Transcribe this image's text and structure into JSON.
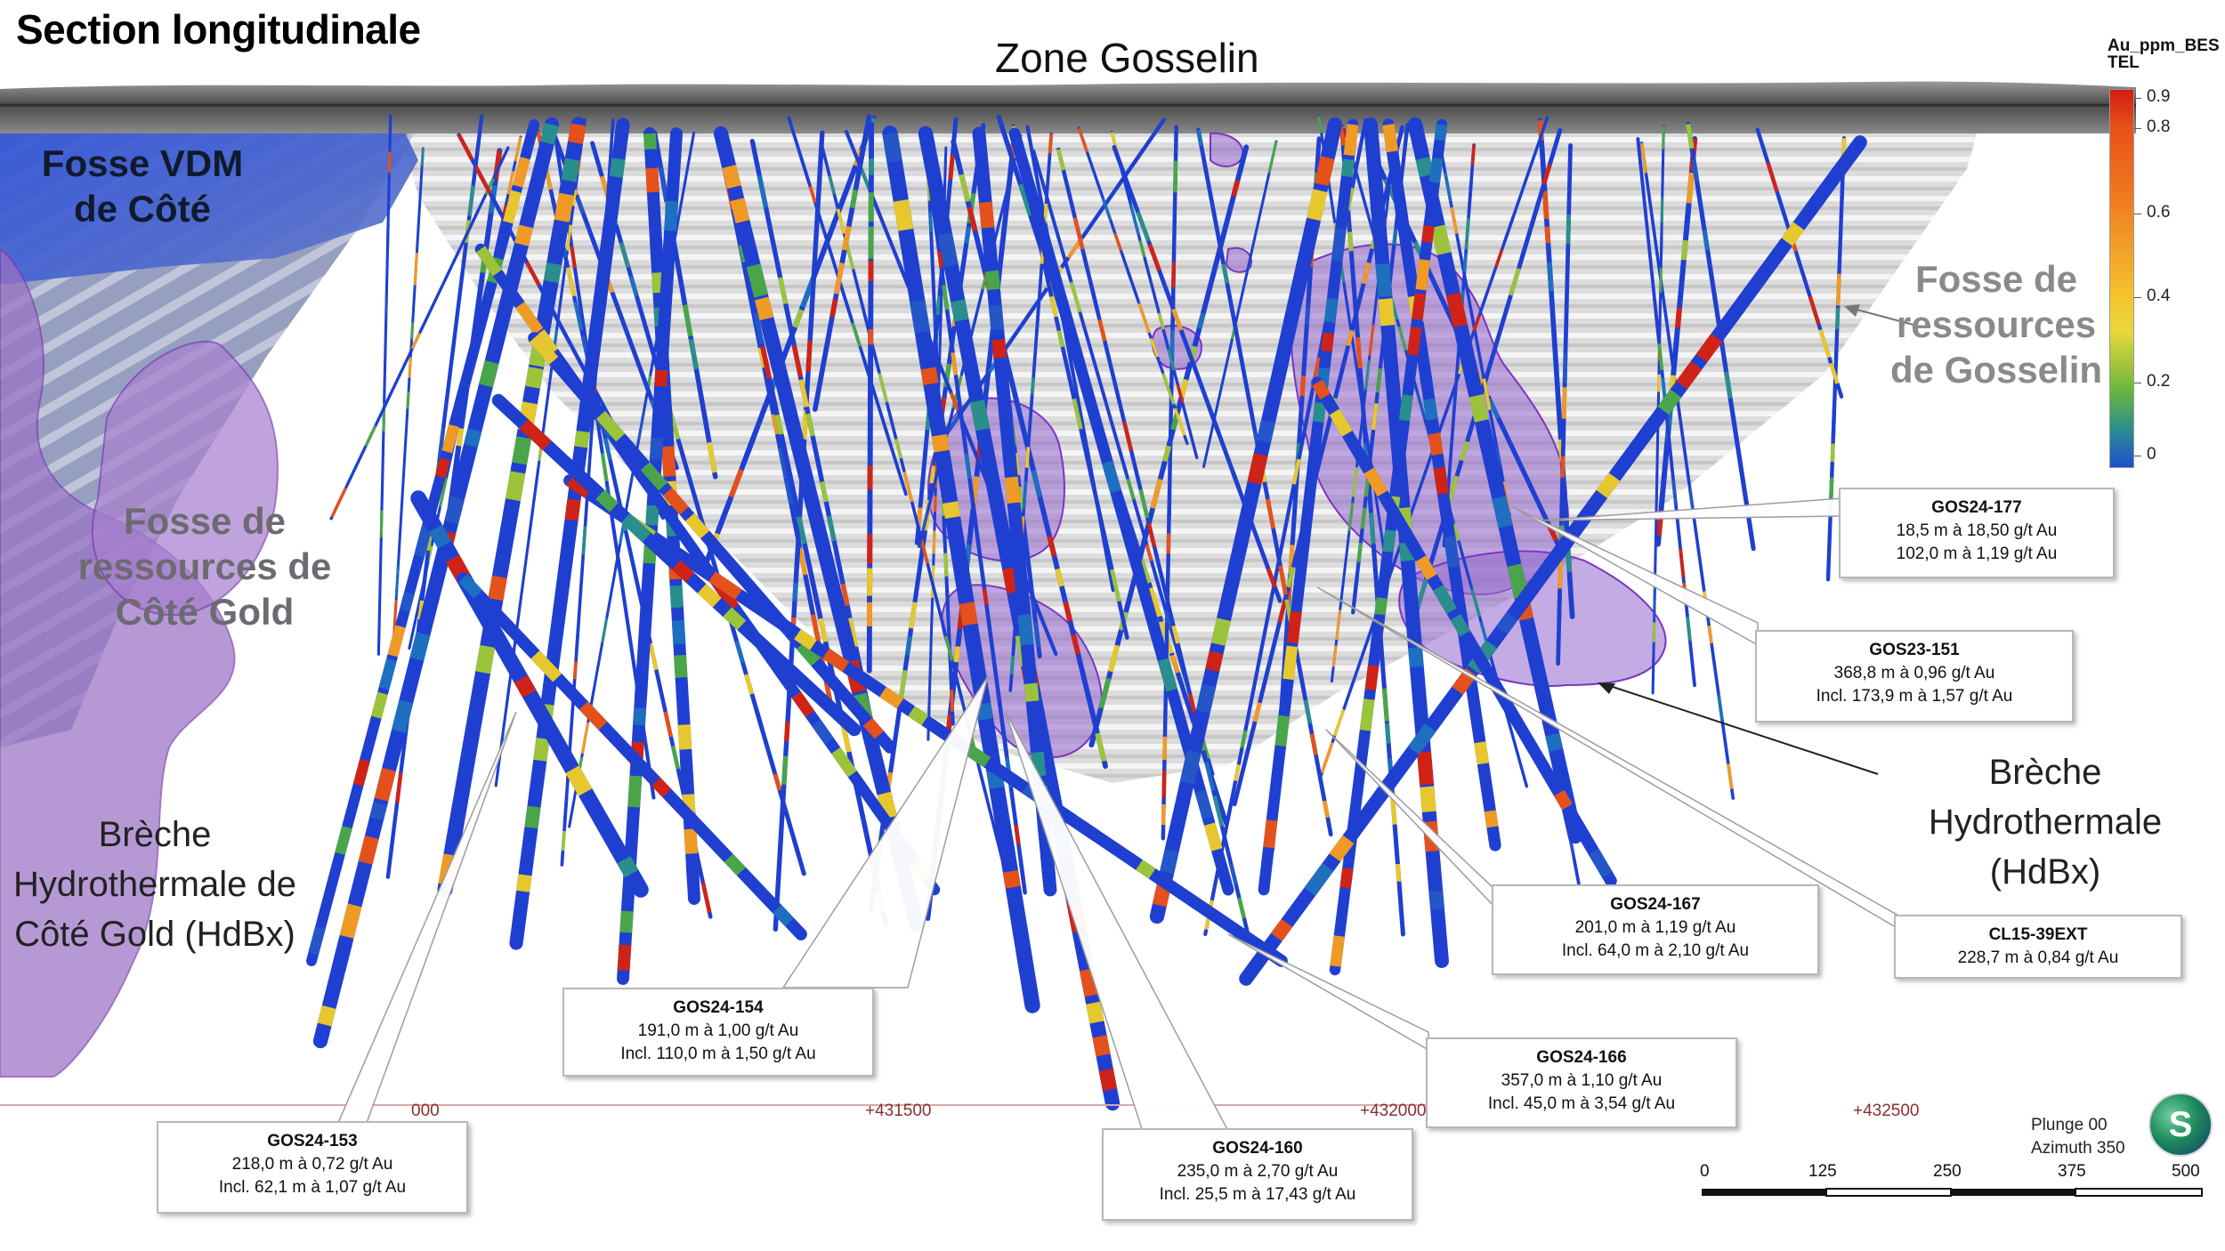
{
  "title": "Section longitudinale",
  "zone_title": "Zone Gosselin",
  "pit_labels": {
    "vdm": "Fosse VDM de Côté",
    "cote_gold": "Fosse de ressources de Côté Gold",
    "gosselin": "Fosse de ressources de Gosselin"
  },
  "geology_labels": {
    "breche_cote": "Brèche Hydrothermale de Côté Gold (HdBx)",
    "breche_gosselin": "Brèche Hydrothermale (HdBx)"
  },
  "legend": {
    "title": "Au_ppm_BESTEL",
    "ticks": [
      "0.9",
      "0.8",
      "0.6",
      "0.4",
      "0.2",
      "0"
    ],
    "colors": {
      "high": "#d21c14",
      "mid_high": "#f07e22",
      "mid": "#f4c42d",
      "low_mid": "#6fb83c",
      "low": "#1c4fd0"
    }
  },
  "callouts": [
    {
      "id": "GOS24-177",
      "line1": "18,5 m à 18,50 g/t Au",
      "line2": "102,0 m à 1,19 g/t Au"
    },
    {
      "id": "GOS23-151",
      "line1": "368,8 m à 0,96 g/t Au",
      "line2": "Incl. 173,9 m à 1,57 g/t Au"
    },
    {
      "id": "GOS24-167",
      "line1": "201,0 m à 1,19 g/t Au",
      "line2": "Incl. 64,0 m à 2,10 g/t Au"
    },
    {
      "id": "CL15-39EXT",
      "line1": "228,7 m à 0,84 g/t Au",
      "line2": ""
    },
    {
      "id": "GOS24-166",
      "line1": "357,0 m à 1,10 g/t Au",
      "line2": "Incl. 45,0 m à 3,54 g/t Au"
    },
    {
      "id": "GOS24-154",
      "line1": "191,0 m à 1,00 g/t Au",
      "line2": "Incl. 110,0 m à 1,50 g/t Au"
    },
    {
      "id": "GOS24-153",
      "line1": "218,0 m à 0,72 g/t Au",
      "line2": "Incl. 62,1 m à 1,07 g/t Au"
    },
    {
      "id": "GOS24-160",
      "line1": "235,0 m à 2,70 g/t Au",
      "line2": "Incl. 25,5 m à 17,43 g/t Au"
    }
  ],
  "coordinates": [
    "000",
    "+431500",
    "+432000",
    "+432500"
  ],
  "orientation": {
    "plunge": "Plunge 00",
    "azimuth": "Azimuth 350"
  },
  "scale_bar": {
    "labels": [
      "0",
      "125",
      "250",
      "375",
      "500"
    ]
  },
  "compass_letter": "S",
  "colors": {
    "pit_blue": "#2e4fcf",
    "hdbx_purple": "#9a72c4",
    "pit_grey": "#c8c8c8",
    "coord_line": "#c99090"
  }
}
